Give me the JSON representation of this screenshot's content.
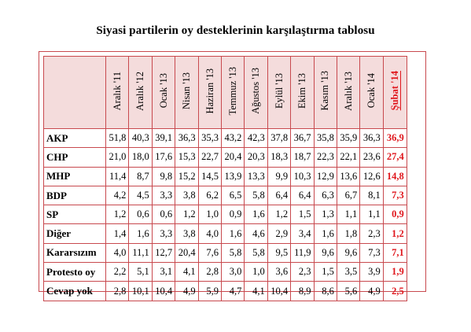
{
  "title": "Siyasi partilerin oy desteklerinin karşılaştırma tablosu",
  "columns": [
    "Aralık '11",
    "Aralık '12",
    "Ocak '13",
    "Nisan '13",
    "Haziran '13",
    "Temmuz '13",
    "Ağustos '13",
    "Eylül '13",
    "Ekim '13",
    "Kasım '13",
    "Aralık '13",
    "Ocak '14",
    "Şubat '14"
  ],
  "rows": [
    {
      "name": "AKP",
      "values": [
        "51,8",
        "40,3",
        "39,1",
        "36,3",
        "35,3",
        "43,2",
        "42,3",
        "37,8",
        "36,7",
        "35,8",
        "35,9",
        "36,3",
        "36,9"
      ]
    },
    {
      "name": "CHP",
      "values": [
        "21,0",
        "18,0",
        "17,6",
        "15,3",
        "22,7",
        "20,4",
        "20,3",
        "18,3",
        "18,7",
        "22,3",
        "22,1",
        "23,6",
        "27,4"
      ]
    },
    {
      "name": "MHP",
      "values": [
        "11,4",
        "8,7",
        "9,8",
        "15,2",
        "14,5",
        "13,9",
        "13,3",
        "9,9",
        "10,3",
        "12,9",
        "13,6",
        "12,6",
        "14,8"
      ]
    },
    {
      "name": "BDP",
      "values": [
        "4,2",
        "4,5",
        "3,3",
        "3,8",
        "6,2",
        "6,5",
        "5,8",
        "6,4",
        "6,4",
        "6,3",
        "6,7",
        "8,1",
        "7,3"
      ]
    },
    {
      "name": "SP",
      "values": [
        "1,2",
        "0,6",
        "0,6",
        "1,2",
        "1,0",
        "0,9",
        "1,6",
        "1,2",
        "1,5",
        "1,3",
        "1,1",
        "1,1",
        "0,9"
      ]
    },
    {
      "name": "Diğer",
      "values": [
        "1,4",
        "1,6",
        "3,3",
        "3,8",
        "4,0",
        "1,6",
        "4,6",
        "2,9",
        "3,4",
        "1,6",
        "1,8",
        "2,3",
        "1,2"
      ]
    },
    {
      "name": "Kararsızım",
      "values": [
        "4,0",
        "11,1",
        "12,7",
        "20,4",
        "7,6",
        "5,8",
        "5,8",
        "9,5",
        "11,9",
        "9,6",
        "9,6",
        "7,3",
        "7,1"
      ]
    },
    {
      "name": "Protesto oy",
      "values": [
        "2,2",
        "5,1",
        "3,1",
        "4,1",
        "2,8",
        "3,0",
        "1,0",
        "3,6",
        "2,3",
        "1,5",
        "3,5",
        "3,9",
        "1,9"
      ]
    },
    {
      "name": "Cevap yok",
      "values": [
        "2,8",
        "10,1",
        "10,4",
        "4,9",
        "5,9",
        "4,7",
        "4,1",
        "10,4",
        "8,9",
        "8,6",
        "5,6",
        "4,9",
        "2,5"
      ]
    }
  ],
  "colors": {
    "border": "#c8494e",
    "header_bg": "#f4dcdc",
    "highlight": "#e0161c"
  }
}
